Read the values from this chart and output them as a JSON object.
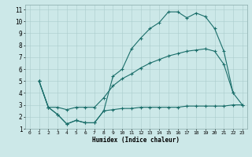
{
  "xlabel": "Humidex (Indice chaleur)",
  "background_color": "#cce8e8",
  "grid_color": "#aacccc",
  "line_color": "#1a6e6a",
  "xlim": [
    -0.5,
    23.5
  ],
  "ylim": [
    1,
    11.4
  ],
  "xticks": [
    0,
    1,
    2,
    3,
    4,
    5,
    6,
    7,
    8,
    9,
    10,
    11,
    12,
    13,
    14,
    15,
    16,
    17,
    18,
    19,
    20,
    21,
    22,
    23
  ],
  "yticks": [
    1,
    2,
    3,
    4,
    5,
    6,
    7,
    8,
    9,
    10,
    11
  ],
  "line1_x": [
    1,
    2,
    3,
    4,
    5,
    6,
    7,
    8,
    9,
    10,
    11,
    12,
    13,
    14,
    15,
    16,
    17,
    18,
    19,
    20,
    21,
    22
  ],
  "line1_y": [
    5.0,
    2.8,
    2.2,
    1.4,
    1.7,
    1.5,
    1.5,
    2.5,
    5.4,
    6.0,
    7.7,
    8.6,
    9.4,
    9.9,
    10.8,
    10.8,
    10.3,
    10.7,
    10.4,
    9.4,
    7.5,
    4.0
  ],
  "line2_x": [
    1,
    2,
    3,
    4,
    5,
    6,
    7,
    8,
    9,
    10,
    11,
    12,
    13,
    14,
    15,
    16,
    17,
    18,
    19,
    20,
    21,
    22,
    23
  ],
  "line2_y": [
    5.0,
    2.8,
    2.8,
    2.6,
    2.8,
    2.8,
    2.8,
    3.6,
    4.6,
    5.2,
    5.6,
    6.1,
    6.5,
    6.8,
    7.1,
    7.3,
    7.5,
    7.6,
    7.7,
    7.5,
    6.4,
    4.0,
    3.0
  ],
  "line3_x": [
    1,
    2,
    3,
    4,
    5,
    6,
    7,
    8,
    9,
    10,
    11,
    12,
    13,
    14,
    15,
    16,
    17,
    18,
    19,
    20,
    21,
    22,
    23
  ],
  "line3_y": [
    5.0,
    2.8,
    2.2,
    1.4,
    1.7,
    1.5,
    1.5,
    2.5,
    2.6,
    2.7,
    2.7,
    2.8,
    2.8,
    2.8,
    2.8,
    2.8,
    2.9,
    2.9,
    2.9,
    2.9,
    2.9,
    3.0,
    3.0
  ]
}
